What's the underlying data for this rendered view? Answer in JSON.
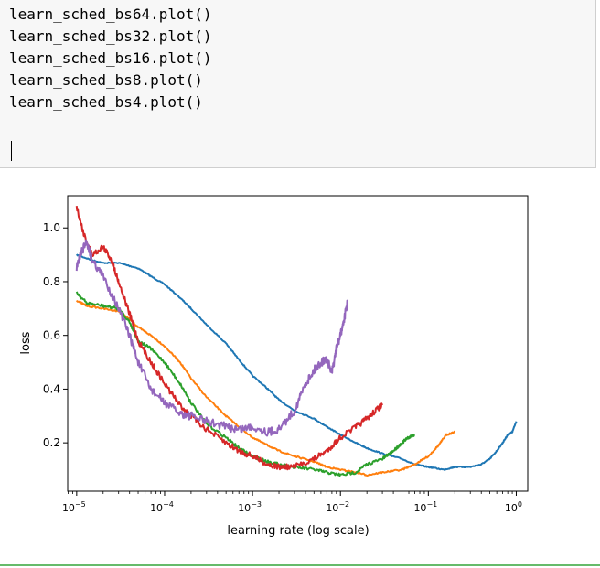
{
  "cell": {
    "code_lines": [
      "learn_sched_bs64.plot()",
      "learn_sched_bs32.plot()",
      "learn_sched_bs16.plot()",
      "learn_sched_bs8.plot()",
      "learn_sched_bs4.plot()"
    ]
  },
  "colors": {
    "cell_background": "#f7f7f7",
    "cell_border": "#cfcfcf",
    "selected_border": "#66bb6a"
  },
  "chart_data": {
    "type": "line",
    "xscale": "log",
    "xlabel": "learning rate (log scale)",
    "ylabel": "loss",
    "xlim": [
      7.9e-06,
      1.35
    ],
    "ylim": [
      0.02,
      1.12
    ],
    "yticks": [
      0.2,
      0.4,
      0.6,
      0.8,
      1.0
    ],
    "ytick_labels": [
      "0.2",
      "0.4",
      "0.6",
      "0.8",
      "1.0"
    ],
    "xticks": [
      1e-05,
      0.0001,
      0.001,
      0.01,
      0.1,
      1
    ],
    "xtick_labels": [
      {
        "base": "10",
        "exp": "−5"
      },
      {
        "base": "10",
        "exp": "−4"
      },
      {
        "base": "10",
        "exp": "−3"
      },
      {
        "base": "10",
        "exp": "−2"
      },
      {
        "base": "10",
        "exp": "−1"
      },
      {
        "base": "10",
        "exp": "0"
      }
    ],
    "grid": false,
    "series": [
      {
        "color": "#1f77b4",
        "x": [
          1e-05,
          1.5e-05,
          2e-05,
          3e-05,
          5e-05,
          7e-05,
          0.0001,
          0.00015,
          0.0002,
          0.0003,
          0.0005,
          0.0007,
          0.001,
          0.0015,
          0.002,
          0.003,
          0.005,
          0.007,
          0.01,
          0.015,
          0.02,
          0.03,
          0.05,
          0.07,
          0.1,
          0.15,
          0.2,
          0.3,
          0.4,
          0.5,
          0.6,
          0.7,
          0.8,
          0.9,
          1.0
        ],
        "y": [
          0.9,
          0.88,
          0.87,
          0.87,
          0.85,
          0.82,
          0.79,
          0.74,
          0.7,
          0.64,
          0.57,
          0.51,
          0.45,
          0.4,
          0.36,
          0.32,
          0.29,
          0.26,
          0.23,
          0.2,
          0.18,
          0.16,
          0.14,
          0.12,
          0.11,
          0.1,
          0.11,
          0.11,
          0.12,
          0.14,
          0.17,
          0.2,
          0.23,
          0.24,
          0.28
        ]
      },
      {
        "color": "#ff7f0e",
        "x": [
          1e-05,
          1.3e-05,
          2e-05,
          3e-05,
          4e-05,
          5e-05,
          7e-05,
          0.0001,
          0.00015,
          0.0002,
          0.0003,
          0.0005,
          0.0007,
          0.001,
          0.0015,
          0.002,
          0.003,
          0.005,
          0.007,
          0.01,
          0.015,
          0.02,
          0.03,
          0.05,
          0.07,
          0.1,
          0.13,
          0.16,
          0.2
        ],
        "y": [
          0.73,
          0.71,
          0.7,
          0.69,
          0.66,
          0.63,
          0.6,
          0.56,
          0.5,
          0.44,
          0.37,
          0.3,
          0.26,
          0.22,
          0.19,
          0.17,
          0.15,
          0.13,
          0.11,
          0.1,
          0.09,
          0.08,
          0.09,
          0.1,
          0.12,
          0.15,
          0.19,
          0.23,
          0.24
        ]
      },
      {
        "color": "#2ca02c",
        "x": [
          1e-05,
          1.3e-05,
          2e-05,
          3e-05,
          4e-05,
          5e-05,
          7e-05,
          0.0001,
          0.00015,
          0.0002,
          0.0003,
          0.0005,
          0.0007,
          0.001,
          0.0015,
          0.002,
          0.003,
          0.005,
          0.007,
          0.01,
          0.015,
          0.02,
          0.03,
          0.04,
          0.05,
          0.06,
          0.07
        ],
        "y": [
          0.76,
          0.72,
          0.71,
          0.7,
          0.65,
          0.58,
          0.55,
          0.5,
          0.42,
          0.35,
          0.27,
          0.22,
          0.18,
          0.15,
          0.13,
          0.12,
          0.11,
          0.1,
          0.09,
          0.08,
          0.09,
          0.12,
          0.14,
          0.17,
          0.2,
          0.22,
          0.23
        ]
      },
      {
        "color": "#d62728",
        "x": [
          1e-05,
          1.2e-05,
          1.5e-05,
          2e-05,
          2.5e-05,
          3e-05,
          4e-05,
          5e-05,
          7e-05,
          0.0001,
          0.00015,
          0.0002,
          0.0003,
          0.0005,
          0.0007,
          0.001,
          0.0015,
          0.002,
          0.003,
          0.005,
          0.007,
          0.01,
          0.015,
          0.02,
          0.025,
          0.03
        ],
        "y": [
          1.08,
          0.98,
          0.9,
          0.93,
          0.88,
          0.8,
          0.68,
          0.58,
          0.5,
          0.42,
          0.34,
          0.3,
          0.25,
          0.2,
          0.17,
          0.15,
          0.12,
          0.11,
          0.11,
          0.14,
          0.17,
          0.22,
          0.26,
          0.29,
          0.32,
          0.34
        ]
      },
      {
        "color": "#9467bd",
        "x": [
          1e-05,
          1.1e-05,
          1.3e-05,
          1.5e-05,
          2e-05,
          3e-05,
          4e-05,
          5e-05,
          7e-05,
          0.0001,
          0.00015,
          0.0002,
          0.0003,
          0.0005,
          0.0007,
          0.001,
          0.0015,
          0.002,
          0.003,
          0.004,
          0.005,
          0.006,
          0.007,
          0.008,
          0.009,
          0.01,
          0.011,
          0.012
        ],
        "y": [
          0.85,
          0.9,
          0.95,
          0.88,
          0.82,
          0.7,
          0.6,
          0.5,
          0.4,
          0.35,
          0.31,
          0.3,
          0.28,
          0.26,
          0.25,
          0.26,
          0.24,
          0.25,
          0.32,
          0.42,
          0.47,
          0.5,
          0.51,
          0.46,
          0.55,
          0.6,
          0.66,
          0.72
        ]
      }
    ]
  }
}
